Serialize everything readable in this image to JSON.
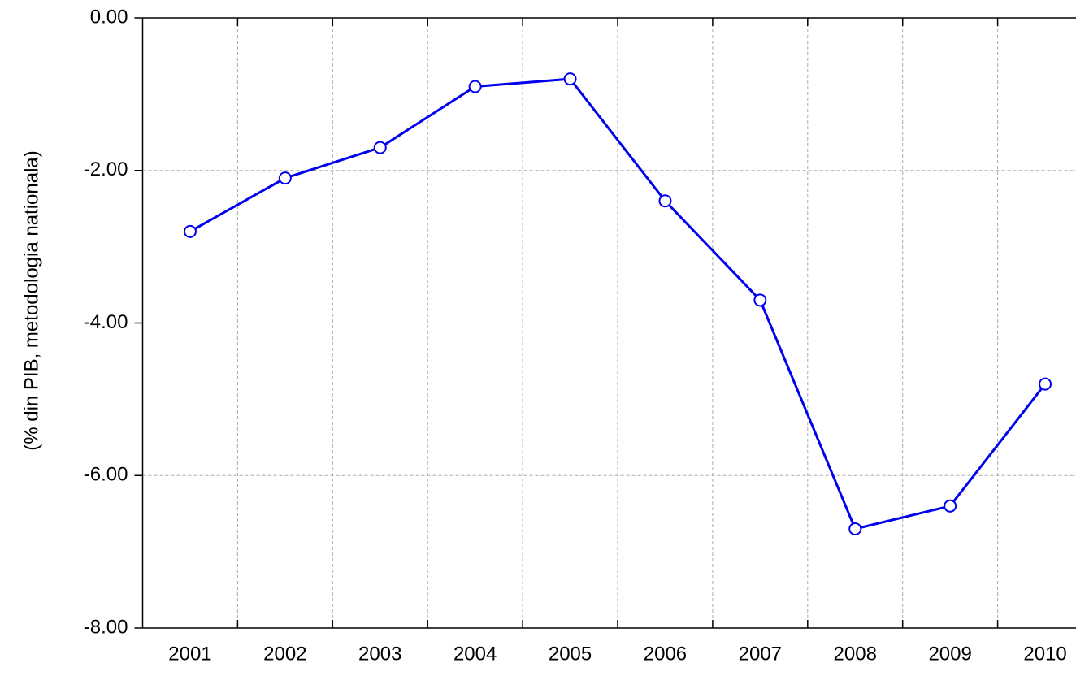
{
  "chart_data": {
    "type": "line",
    "y_label": "(% din PIB, metodologia nationala)",
    "categories": [
      "2001",
      "2002",
      "2003",
      "2004",
      "2005",
      "2006",
      "2007",
      "2008",
      "2009",
      "2010"
    ],
    "values": [
      -2.8,
      -2.1,
      -1.7,
      -0.9,
      -0.8,
      -2.4,
      -3.7,
      -6.7,
      -6.4,
      -4.8
    ],
    "color": "#0000ee",
    "ylim": [
      -8,
      0
    ],
    "yticks": [
      {
        "value": -8,
        "label": "-8.00"
      },
      {
        "value": -6,
        "label": "-6.00"
      },
      {
        "value": -4,
        "label": "-4.00"
      },
      {
        "value": -2,
        "label": "-2.00"
      },
      {
        "value": 0,
        "label": "0.00"
      }
    ],
    "grid": true
  }
}
